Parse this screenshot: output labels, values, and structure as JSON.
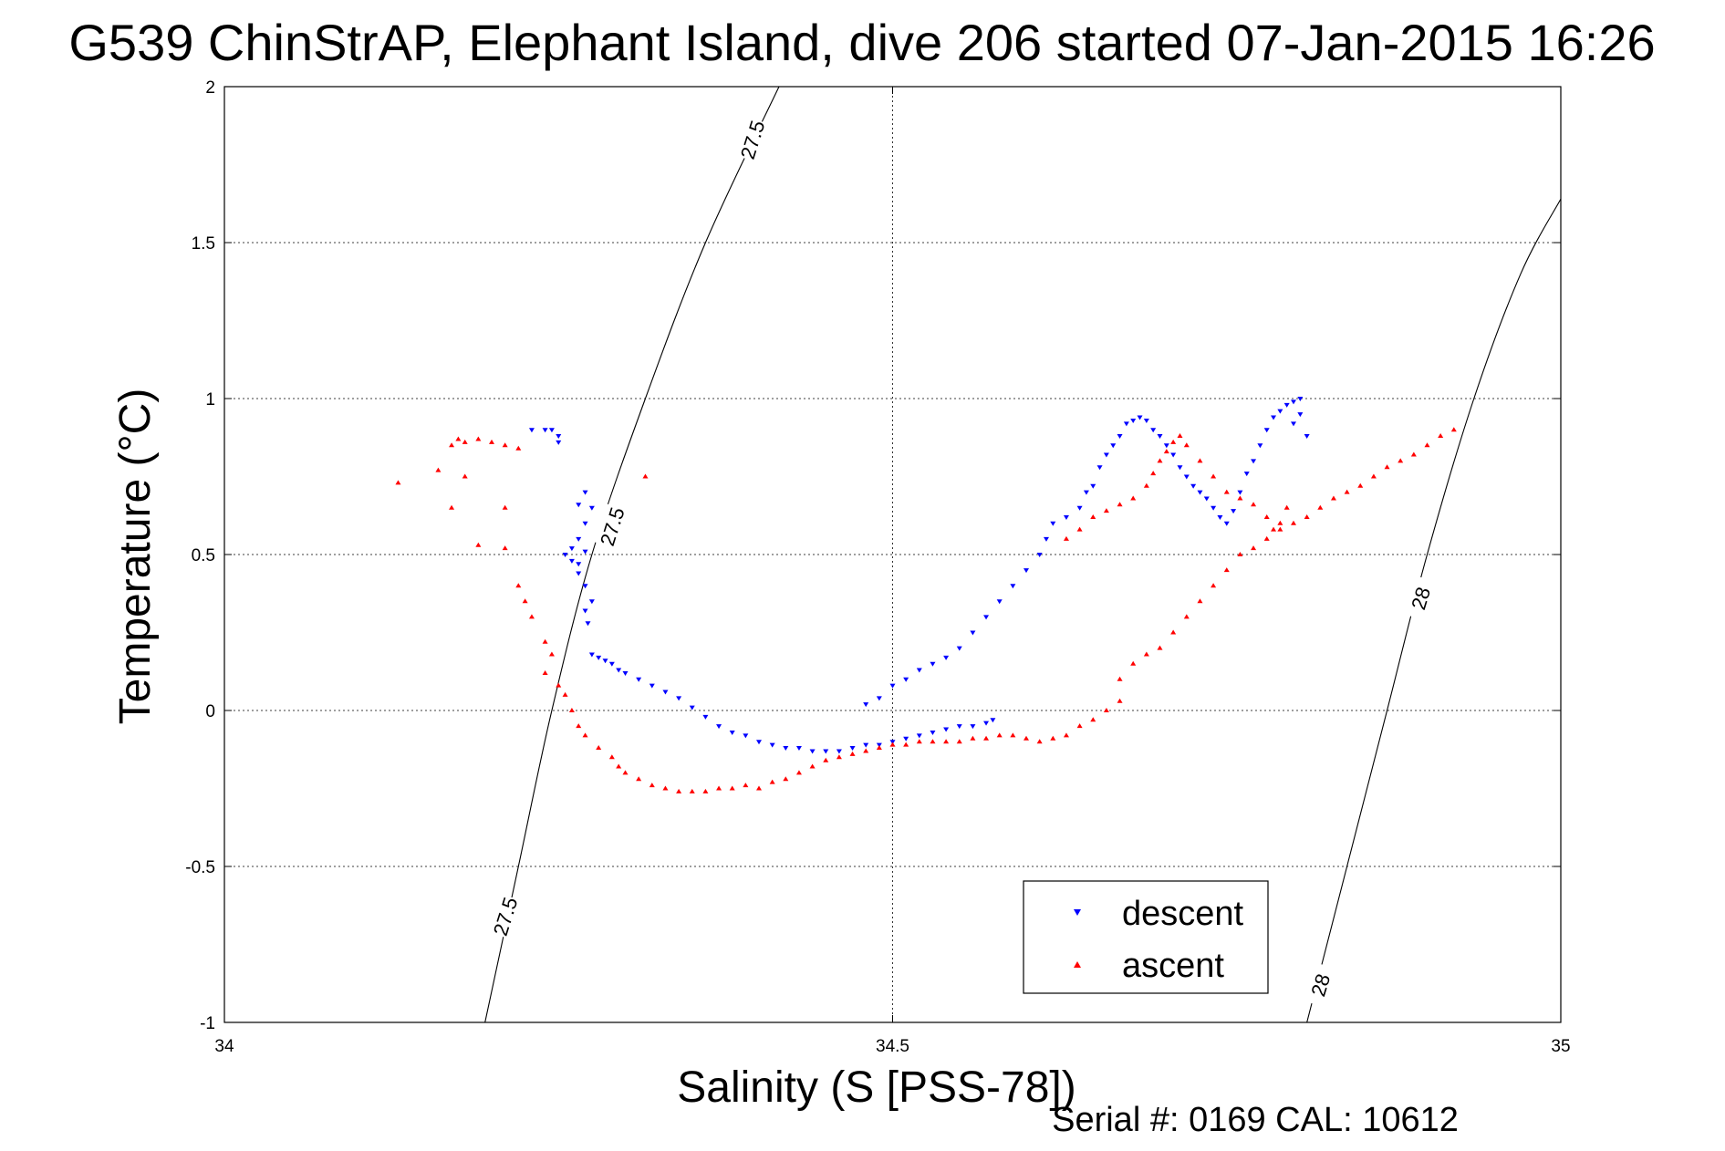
{
  "chart_data": {
    "type": "scatter",
    "title": "G539 ChinStrAP, Elephant Island, dive 206 started 07-Jan-2015 16:26",
    "xlabel": "Salinity (S [PSS-78])",
    "ylabel": "Temperature (°C)",
    "xlim": [
      34,
      35
    ],
    "ylim": [
      -1,
      2
    ],
    "xticks": [
      "34",
      "34.5",
      "35"
    ],
    "yticks": [
      "-1",
      "-0.5",
      "0",
      "0.5",
      "1",
      "1.5",
      "2"
    ],
    "grid": true,
    "legend_position": "bottom-right",
    "footer": "Serial #: 0169 CAL: 10612",
    "colors": {
      "descent": "#0000ff",
      "ascent": "#ff0000",
      "contour": "#000000"
    },
    "contours": [
      {
        "label": "27.5",
        "points": [
          [
            34.195,
            -1.0
          ],
          [
            34.22,
            -0.5
          ],
          [
            34.245,
            0.0
          ],
          [
            34.275,
            0.5
          ],
          [
            34.315,
            1.0
          ],
          [
            34.36,
            1.5
          ],
          [
            34.415,
            2.0
          ]
        ],
        "label_positions": [
          [
            34.21,
            -0.66
          ],
          [
            34.29,
            0.59
          ],
          [
            34.395,
            1.83
          ]
        ]
      },
      {
        "label": "28",
        "points": [
          [
            34.81,
            -1.0
          ],
          [
            34.84,
            -0.5
          ],
          [
            34.87,
            0.0
          ],
          [
            34.9,
            0.5
          ],
          [
            34.935,
            1.0
          ],
          [
            34.97,
            1.4
          ],
          [
            35.0,
            1.64
          ]
        ],
        "label_positions": [
          [
            34.82,
            -0.88
          ],
          [
            34.895,
            0.36
          ]
        ]
      }
    ],
    "series": [
      {
        "name": "descent",
        "marker": "triangle-down",
        "points": [
          [
            34.23,
            0.9
          ],
          [
            34.24,
            0.9
          ],
          [
            34.245,
            0.9
          ],
          [
            34.25,
            0.88
          ],
          [
            34.25,
            0.86
          ],
          [
            34.27,
            0.7
          ],
          [
            34.265,
            0.66
          ],
          [
            34.275,
            0.65
          ],
          [
            34.27,
            0.6
          ],
          [
            34.265,
            0.55
          ],
          [
            34.26,
            0.52
          ],
          [
            34.255,
            0.5
          ],
          [
            34.26,
            0.48
          ],
          [
            34.265,
            0.47
          ],
          [
            34.27,
            0.51
          ],
          [
            34.265,
            0.44
          ],
          [
            34.27,
            0.4
          ],
          [
            34.275,
            0.35
          ],
          [
            34.27,
            0.32
          ],
          [
            34.272,
            0.28
          ],
          [
            34.275,
            0.18
          ],
          [
            34.28,
            0.17
          ],
          [
            34.285,
            0.16
          ],
          [
            34.29,
            0.15
          ],
          [
            34.295,
            0.13
          ],
          [
            34.3,
            0.12
          ],
          [
            34.31,
            0.1
          ],
          [
            34.32,
            0.08
          ],
          [
            34.33,
            0.06
          ],
          [
            34.34,
            0.04
          ],
          [
            34.35,
            0.01
          ],
          [
            34.36,
            -0.02
          ],
          [
            34.37,
            -0.05
          ],
          [
            34.38,
            -0.07
          ],
          [
            34.39,
            -0.08
          ],
          [
            34.4,
            -0.1
          ],
          [
            34.41,
            -0.11
          ],
          [
            34.42,
            -0.12
          ],
          [
            34.43,
            -0.12
          ],
          [
            34.44,
            -0.13
          ],
          [
            34.45,
            -0.13
          ],
          [
            34.46,
            -0.13
          ],
          [
            34.47,
            -0.12
          ],
          [
            34.48,
            -0.11
          ],
          [
            34.49,
            -0.11
          ],
          [
            34.5,
            -0.1
          ],
          [
            34.51,
            -0.09
          ],
          [
            34.52,
            -0.08
          ],
          [
            34.53,
            -0.07
          ],
          [
            34.54,
            -0.06
          ],
          [
            34.55,
            -0.05
          ],
          [
            34.56,
            -0.05
          ],
          [
            34.57,
            -0.04
          ],
          [
            34.575,
            -0.03
          ],
          [
            34.48,
            0.02
          ],
          [
            34.49,
            0.04
          ],
          [
            34.5,
            0.08
          ],
          [
            34.51,
            0.1
          ],
          [
            34.52,
            0.13
          ],
          [
            34.53,
            0.15
          ],
          [
            34.54,
            0.17
          ],
          [
            34.55,
            0.2
          ],
          [
            34.56,
            0.25
          ],
          [
            34.57,
            0.3
          ],
          [
            34.58,
            0.35
          ],
          [
            34.59,
            0.4
          ],
          [
            34.6,
            0.45
          ],
          [
            34.61,
            0.5
          ],
          [
            34.615,
            0.55
          ],
          [
            34.62,
            0.6
          ],
          [
            34.63,
            0.62
          ],
          [
            34.64,
            0.65
          ],
          [
            34.645,
            0.7
          ],
          [
            34.65,
            0.72
          ],
          [
            34.655,
            0.78
          ],
          [
            34.66,
            0.82
          ],
          [
            34.665,
            0.85
          ],
          [
            34.67,
            0.88
          ],
          [
            34.675,
            0.92
          ],
          [
            34.68,
            0.93
          ],
          [
            34.685,
            0.94
          ],
          [
            34.69,
            0.93
          ],
          [
            34.695,
            0.9
          ],
          [
            34.7,
            0.88
          ],
          [
            34.705,
            0.85
          ],
          [
            34.71,
            0.82
          ],
          [
            34.715,
            0.78
          ],
          [
            34.72,
            0.75
          ],
          [
            34.725,
            0.72
          ],
          [
            34.73,
            0.7
          ],
          [
            34.735,
            0.68
          ],
          [
            34.74,
            0.65
          ],
          [
            34.745,
            0.62
          ],
          [
            34.75,
            0.6
          ],
          [
            34.755,
            0.64
          ],
          [
            34.76,
            0.7
          ],
          [
            34.765,
            0.76
          ],
          [
            34.77,
            0.8
          ],
          [
            34.775,
            0.85
          ],
          [
            34.78,
            0.9
          ],
          [
            34.785,
            0.94
          ],
          [
            34.79,
            0.96
          ],
          [
            34.795,
            0.98
          ],
          [
            34.8,
            0.99
          ],
          [
            34.805,
            1.0
          ],
          [
            34.805,
            0.95
          ],
          [
            34.8,
            0.92
          ],
          [
            34.81,
            0.88
          ]
        ]
      },
      {
        "name": "ascent",
        "marker": "triangle-up",
        "points": [
          [
            34.13,
            0.73
          ],
          [
            34.16,
            0.77
          ],
          [
            34.17,
            0.85
          ],
          [
            34.175,
            0.87
          ],
          [
            34.18,
            0.86
          ],
          [
            34.19,
            0.87
          ],
          [
            34.2,
            0.86
          ],
          [
            34.21,
            0.85
          ],
          [
            34.22,
            0.84
          ],
          [
            34.17,
            0.65
          ],
          [
            34.18,
            0.75
          ],
          [
            34.19,
            0.53
          ],
          [
            34.21,
            0.52
          ],
          [
            34.21,
            0.65
          ],
          [
            34.315,
            0.75
          ],
          [
            34.22,
            0.4
          ],
          [
            34.225,
            0.35
          ],
          [
            34.23,
            0.3
          ],
          [
            34.24,
            0.22
          ],
          [
            34.245,
            0.18
          ],
          [
            34.24,
            0.12
          ],
          [
            34.25,
            0.08
          ],
          [
            34.255,
            0.05
          ],
          [
            34.26,
            0.0
          ],
          [
            34.265,
            -0.05
          ],
          [
            34.27,
            -0.08
          ],
          [
            34.28,
            -0.12
          ],
          [
            34.29,
            -0.15
          ],
          [
            34.295,
            -0.18
          ],
          [
            34.3,
            -0.2
          ],
          [
            34.31,
            -0.22
          ],
          [
            34.32,
            -0.24
          ],
          [
            34.33,
            -0.25
          ],
          [
            34.34,
            -0.26
          ],
          [
            34.35,
            -0.26
          ],
          [
            34.36,
            -0.26
          ],
          [
            34.37,
            -0.25
          ],
          [
            34.38,
            -0.25
          ],
          [
            34.39,
            -0.24
          ],
          [
            34.4,
            -0.25
          ],
          [
            34.41,
            -0.23
          ],
          [
            34.42,
            -0.22
          ],
          [
            34.43,
            -0.2
          ],
          [
            34.44,
            -0.18
          ],
          [
            34.45,
            -0.16
          ],
          [
            34.46,
            -0.15
          ],
          [
            34.47,
            -0.14
          ],
          [
            34.48,
            -0.13
          ],
          [
            34.49,
            -0.12
          ],
          [
            34.5,
            -0.11
          ],
          [
            34.51,
            -0.11
          ],
          [
            34.52,
            -0.1
          ],
          [
            34.53,
            -0.1
          ],
          [
            34.54,
            -0.1
          ],
          [
            34.55,
            -0.1
          ],
          [
            34.56,
            -0.09
          ],
          [
            34.57,
            -0.09
          ],
          [
            34.58,
            -0.08
          ],
          [
            34.59,
            -0.08
          ],
          [
            34.6,
            -0.09
          ],
          [
            34.61,
            -0.1
          ],
          [
            34.62,
            -0.09
          ],
          [
            34.63,
            -0.08
          ],
          [
            34.64,
            -0.05
          ],
          [
            34.65,
            -0.03
          ],
          [
            34.66,
            0.0
          ],
          [
            34.67,
            0.03
          ],
          [
            34.67,
            0.1
          ],
          [
            34.68,
            0.15
          ],
          [
            34.69,
            0.18
          ],
          [
            34.7,
            0.2
          ],
          [
            34.71,
            0.25
          ],
          [
            34.72,
            0.3
          ],
          [
            34.73,
            0.35
          ],
          [
            34.74,
            0.4
          ],
          [
            34.75,
            0.45
          ],
          [
            34.76,
            0.5
          ],
          [
            34.77,
            0.52
          ],
          [
            34.78,
            0.55
          ],
          [
            34.79,
            0.58
          ],
          [
            34.8,
            0.6
          ],
          [
            34.81,
            0.62
          ],
          [
            34.82,
            0.65
          ],
          [
            34.83,
            0.68
          ],
          [
            34.84,
            0.7
          ],
          [
            34.85,
            0.72
          ],
          [
            34.86,
            0.75
          ],
          [
            34.87,
            0.78
          ],
          [
            34.88,
            0.8
          ],
          [
            34.89,
            0.82
          ],
          [
            34.9,
            0.85
          ],
          [
            34.91,
            0.88
          ],
          [
            34.92,
            0.9
          ],
          [
            34.63,
            0.55
          ],
          [
            34.64,
            0.58
          ],
          [
            34.65,
            0.62
          ],
          [
            34.66,
            0.64
          ],
          [
            34.67,
            0.66
          ],
          [
            34.68,
            0.68
          ],
          [
            34.69,
            0.72
          ],
          [
            34.695,
            0.76
          ],
          [
            34.7,
            0.8
          ],
          [
            34.705,
            0.83
          ],
          [
            34.71,
            0.86
          ],
          [
            34.715,
            0.88
          ],
          [
            34.72,
            0.85
          ],
          [
            34.73,
            0.8
          ],
          [
            34.74,
            0.75
          ],
          [
            34.75,
            0.7
          ],
          [
            34.76,
            0.68
          ],
          [
            34.77,
            0.66
          ],
          [
            34.78,
            0.62
          ],
          [
            34.785,
            0.58
          ],
          [
            34.79,
            0.6
          ],
          [
            34.795,
            0.65
          ]
        ]
      }
    ]
  }
}
